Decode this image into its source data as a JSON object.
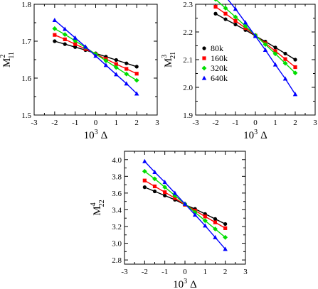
{
  "chart_data": [
    {
      "type": "line",
      "xlabel_base": "10",
      "xlabel_exp": "3",
      "xlabel_sym": "Δ",
      "ylabel_base": "M",
      "ylabel_sup": "2",
      "ylabel_sub": "11",
      "xlim": [
        -3,
        3
      ],
      "ylim": [
        1.5,
        1.8
      ],
      "xticks": [
        -3,
        -2,
        -1,
        0,
        1,
        2,
        3
      ],
      "xtick_labels": [
        "-3",
        "-2",
        "-1",
        "0",
        "1",
        "2",
        "3"
      ],
      "yticks": [
        1.5,
        1.6,
        1.7,
        1.8
      ],
      "ytick_labels": [
        "1.5",
        "1.6",
        "1.7",
        "1.8"
      ],
      "grid": false,
      "x": [
        -2.0,
        -1.5,
        -1.0,
        -0.5,
        0.0,
        0.5,
        1.0,
        1.5,
        2.0
      ],
      "series": [
        {
          "color": "#000000",
          "marker": "circle",
          "values": [
            1.7,
            1.692,
            1.684,
            1.676,
            1.667,
            1.658,
            1.649,
            1.64,
            1.631
          ]
        },
        {
          "color": "#ff0000",
          "marker": "square",
          "values": [
            1.717,
            1.705,
            1.692,
            1.679,
            1.665,
            1.652,
            1.638,
            1.625,
            1.612
          ]
        },
        {
          "color": "#00dd00",
          "marker": "diamond",
          "values": [
            1.734,
            1.718,
            1.701,
            1.683,
            1.665,
            1.647,
            1.629,
            1.611,
            1.594
          ]
        },
        {
          "color": "#0000ff",
          "marker": "triangle",
          "values": [
            1.757,
            1.733,
            1.709,
            1.685,
            1.66,
            1.635,
            1.61,
            1.585,
            1.558
          ]
        }
      ]
    },
    {
      "type": "line",
      "xlabel_base": "10",
      "xlabel_exp": "3",
      "xlabel_sym": "Δ",
      "ylabel_base": "M",
      "ylabel_sup": "3",
      "ylabel_sub": "21",
      "xlim": [
        -3,
        3
      ],
      "ylim": [
        1.9,
        2.3
      ],
      "xticks": [
        -3,
        -2,
        -1,
        0,
        1,
        2,
        3
      ],
      "xtick_labels": [
        "-3",
        "-2",
        "-1",
        "0",
        "1",
        "2",
        "3"
      ],
      "yticks": [
        1.9,
        2.0,
        2.1,
        2.2,
        2.3
      ],
      "ytick_labels": [
        "1.9",
        "2.0",
        "2.1",
        "2.2",
        "2.3"
      ],
      "grid": false,
      "legend": {
        "position": "center-left",
        "entries": [
          "80k",
          "160k",
          "320k",
          "640k"
        ]
      },
      "x": [
        -2.0,
        -1.5,
        -1.0,
        -0.5,
        0.0,
        0.5,
        1.0,
        1.5,
        2.0
      ],
      "series": [
        {
          "name": "80k",
          "color": "#000000",
          "marker": "circle",
          "values": [
            2.266,
            2.246,
            2.227,
            2.207,
            2.186,
            2.165,
            2.144,
            2.122,
            2.1
          ]
        },
        {
          "name": "160k",
          "color": "#ff0000",
          "marker": "square",
          "values": [
            2.291,
            2.266,
            2.24,
            2.214,
            2.187,
            2.159,
            2.131,
            2.102,
            2.073
          ]
        },
        {
          "name": "320k",
          "color": "#00dd00",
          "marker": "diamond",
          "values": [
            2.318,
            2.286,
            2.254,
            2.221,
            2.188,
            2.155,
            2.121,
            2.087,
            2.052
          ]
        },
        {
          "name": "640k",
          "color": "#0000ff",
          "marker": "triangle",
          "values": [
            2.378,
            2.328,
            2.283,
            2.234,
            2.185,
            2.135,
            2.082,
            2.031,
            1.975
          ]
        }
      ]
    },
    {
      "type": "line",
      "xlabel_base": "10",
      "xlabel_exp": "3",
      "xlabel_sym": "Δ",
      "ylabel_base": "M",
      "ylabel_sup": "4",
      "ylabel_sub": "22",
      "xlim": [
        -3,
        3
      ],
      "ylim": [
        2.75,
        4.1
      ],
      "xticks": [
        -3,
        -2,
        -1,
        0,
        1,
        2,
        3
      ],
      "xtick_labels": [
        "-3",
        "-2",
        "-1",
        "0",
        "1",
        "2",
        "3"
      ],
      "yticks": [
        2.8,
        3.0,
        3.2,
        3.4,
        3.6,
        3.8,
        4.0
      ],
      "ytick_labels": [
        "2.8",
        "3.0",
        "3.2",
        "3.4",
        "3.6",
        "3.8",
        "4.0"
      ],
      "grid": false,
      "x": [
        -2.0,
        -1.5,
        -1.0,
        -0.5,
        0.0,
        0.5,
        1.0,
        1.5,
        2.0
      ],
      "series": [
        {
          "color": "#000000",
          "marker": "circle",
          "values": [
            3.67,
            3.62,
            3.57,
            3.52,
            3.46,
            3.41,
            3.35,
            3.29,
            3.23
          ]
        },
        {
          "color": "#ff0000",
          "marker": "square",
          "values": [
            3.75,
            3.68,
            3.61,
            3.54,
            3.46,
            3.39,
            3.32,
            3.25,
            3.18
          ]
        },
        {
          "color": "#00dd00",
          "marker": "diamond",
          "values": [
            3.86,
            3.77,
            3.67,
            3.57,
            3.47,
            3.37,
            3.27,
            3.17,
            3.07
          ]
        },
        {
          "color": "#0000ff",
          "marker": "triangle",
          "values": [
            3.98,
            3.85,
            3.73,
            3.6,
            3.47,
            3.34,
            3.21,
            3.07,
            2.93
          ]
        }
      ]
    }
  ]
}
